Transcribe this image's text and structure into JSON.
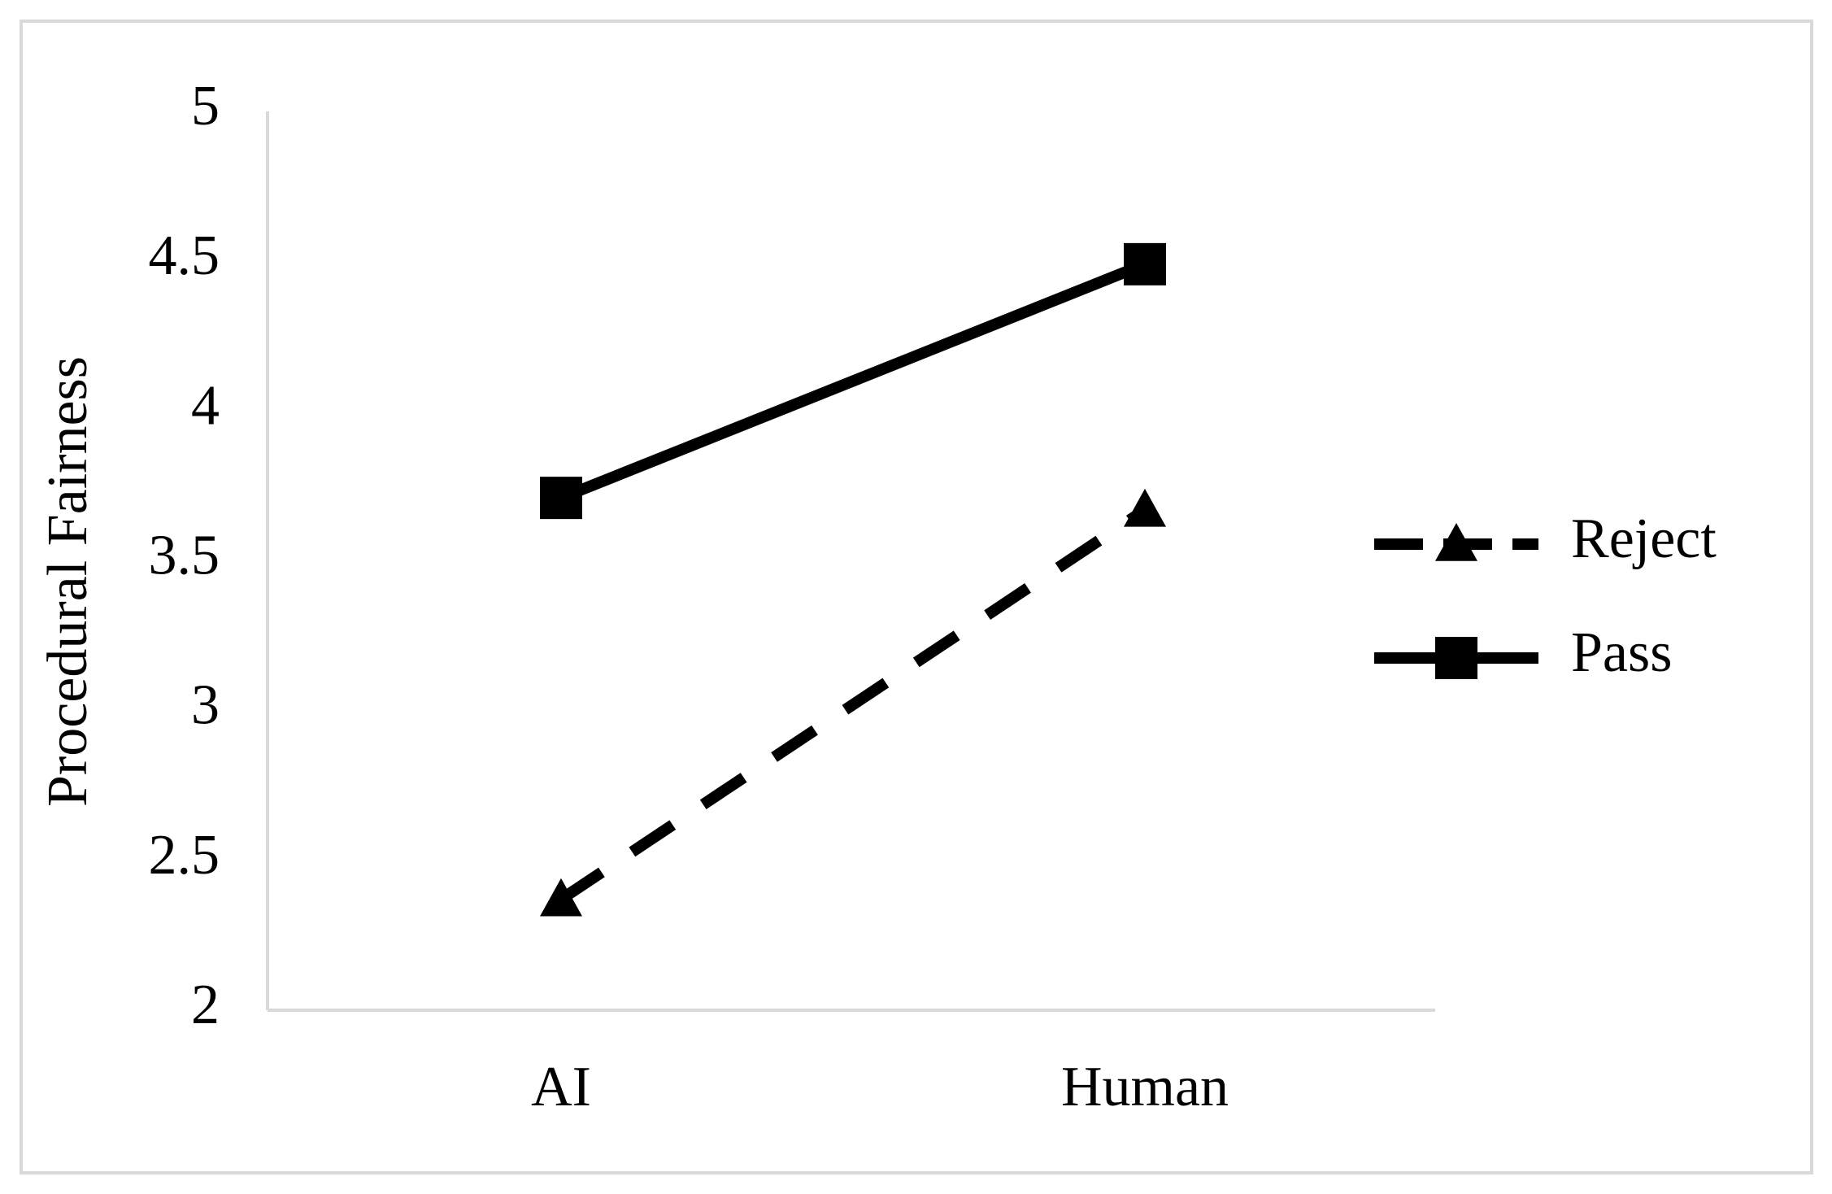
{
  "chart_data": {
    "type": "line",
    "y_label": "Procedural Fairness",
    "categories": [
      "AI",
      "Human"
    ],
    "series": [
      {
        "name": "Reject",
        "color": "#000000",
        "line_style": "dashed",
        "marker": "triangle",
        "values": [
          2.37,
          3.67
        ]
      },
      {
        "name": "Pass",
        "color": "#000000",
        "line_style": "solid",
        "marker": "square",
        "values": [
          3.71,
          4.49
        ]
      }
    ],
    "ylim": [
      2,
      5
    ],
    "yticks": [
      2,
      2.5,
      3,
      3.5,
      4,
      4.5,
      5
    ],
    "grid": false,
    "legend": "right"
  }
}
